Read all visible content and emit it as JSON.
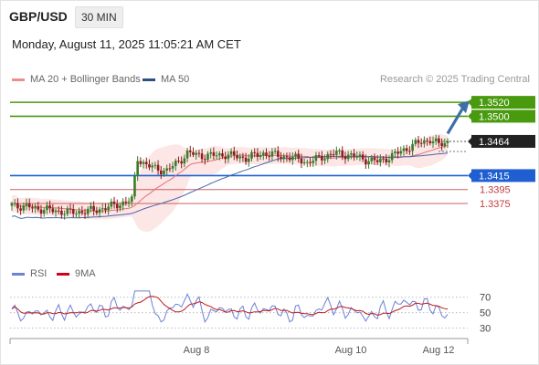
{
  "header": {
    "symbol": "GBP/USD",
    "timeframe": "30 MIN",
    "datetime": "Monday, August 11, 2025 11:05:21 AM CET"
  },
  "legend": {
    "ma20_label": "MA 20 + Bollinger Bands",
    "ma20_color": "#ef8d8d",
    "ma50_label": "MA 50",
    "ma50_color": "#2b4f88"
  },
  "credit": "Research © 2025 Trading Central",
  "rsi_legend": {
    "rsi_label": "RSI",
    "rsi_color": "#6b82d6",
    "ma_label": "9MA",
    "ma_color": "#d0021b"
  },
  "chart_data": {
    "type": "candlestick",
    "price_range": [
      1.329,
      1.3545
    ],
    "levels": [
      {
        "label": "1.3520",
        "value": 1.352,
        "color": "#4a9a0f",
        "style": "tag"
      },
      {
        "label": "1.3500",
        "value": 1.35,
        "color": "#4a9a0f",
        "style": "tag"
      },
      {
        "label": "1.3464",
        "value": 1.3464,
        "color": "#222222",
        "style": "current"
      },
      {
        "label": "1.3415",
        "value": 1.3415,
        "color": "#1f5fd1",
        "style": "tag"
      },
      {
        "label": "1.3395",
        "value": 1.3395,
        "color": "#c23b3b",
        "style": "text"
      },
      {
        "label": "1.3375",
        "value": 1.3375,
        "color": "#c23b3b",
        "style": "text"
      }
    ],
    "x_ticks": [
      "Aug 8",
      "Aug 10",
      "Aug 12"
    ],
    "rsi_ticks": [
      70,
      50,
      30
    ],
    "arrow_target": 1.352,
    "up_color": "#3c7a28",
    "down_color": "#8b1e1e"
  }
}
